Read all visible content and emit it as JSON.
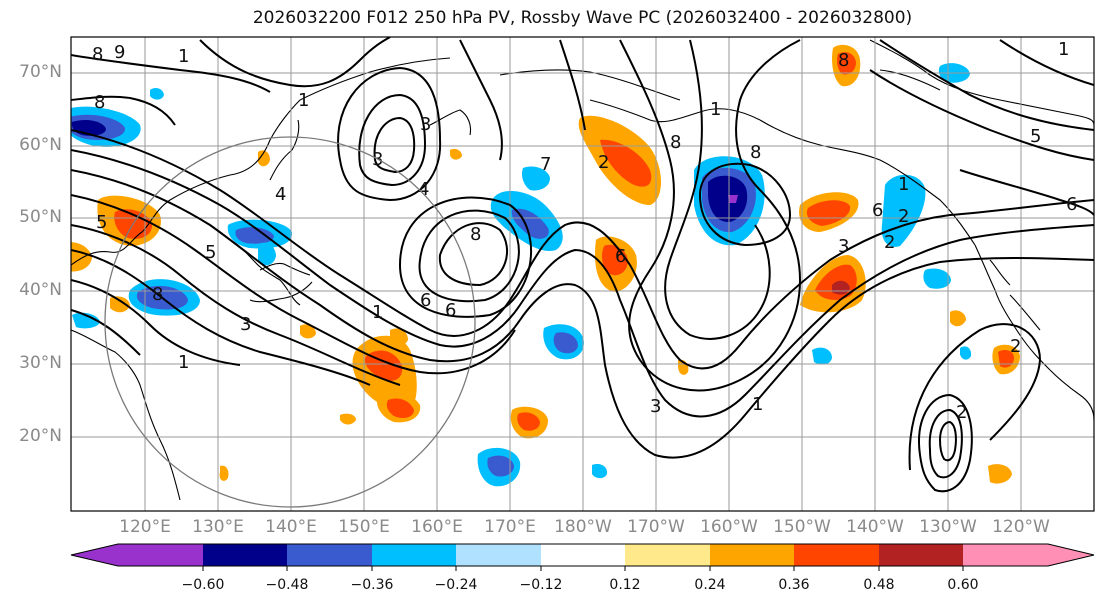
{
  "title": "2026032200 F012 250 hPa PV, Rossby Wave PC (2026032400 - 2026032800)",
  "lat_labels": [
    "70°N",
    "60°N",
    "50°N",
    "40°N",
    "30°N",
    "20°N"
  ],
  "lon_labels": [
    "120°E",
    "130°E",
    "140°E",
    "150°E",
    "160°E",
    "170°E",
    "180°W",
    "170°W",
    "160°W",
    "150°W",
    "140°W",
    "130°W",
    "120°W"
  ],
  "colorbar": {
    "ticks": [
      "−0.60",
      "−0.48",
      "−0.36",
      "−0.24",
      "−0.12",
      "0.12",
      "0.24",
      "0.36",
      "0.48",
      "0.60"
    ],
    "colors": [
      "#9932cc",
      "#00008b",
      "#3a5bcf",
      "#00bfff",
      "#b0e2ff",
      "#ffffff",
      "#ffe98a",
      "#ffa500",
      "#ff4500",
      "#b22222",
      "#ff8fb4"
    ]
  },
  "contour_labels": [
    "8",
    "9",
    "1",
    "8",
    "1",
    "3",
    "3",
    "4",
    "8",
    "5",
    "6",
    "1",
    "3",
    "1",
    "2",
    "8",
    "8",
    "5",
    "1",
    "5",
    "6",
    "6",
    "2",
    "2",
    "3",
    "1",
    "3",
    "2",
    "2",
    "6",
    "7",
    "8",
    "6",
    "1",
    "1",
    "4",
    "8"
  ]
}
